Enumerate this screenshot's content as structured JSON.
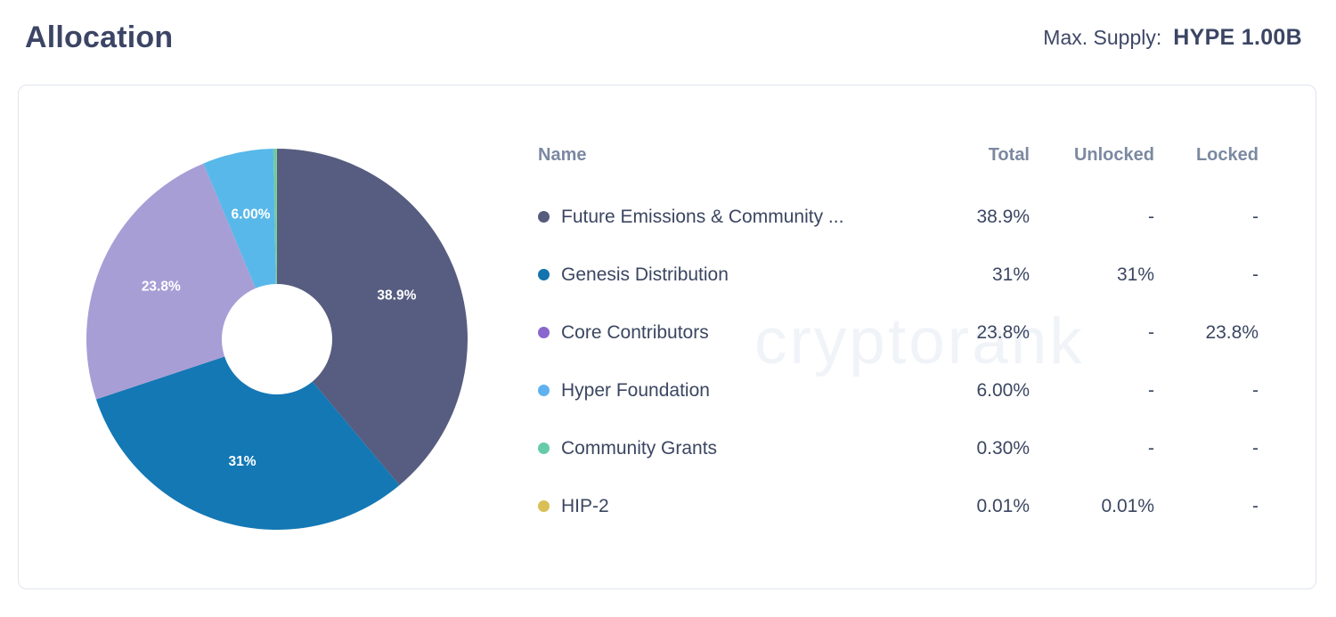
{
  "page": {
    "title": "Allocation",
    "max_supply_label": "Max. Supply:",
    "max_supply_value": "HYPE 1.00B"
  },
  "watermark": "cryptorank",
  "table": {
    "headers": {
      "name": "Name",
      "total": "Total",
      "unlocked": "Unlocked",
      "locked": "Locked"
    },
    "rows": [
      {
        "name": "Future Emissions & Community ...",
        "total": "38.9%",
        "unlocked": "-",
        "locked": "-",
        "dot_color": "#555c7e"
      },
      {
        "name": "Genesis Distribution",
        "total": "31%",
        "unlocked": "31%",
        "locked": "-",
        "dot_color": "#1273ae"
      },
      {
        "name": "Core Contributors",
        "total": "23.8%",
        "unlocked": "-",
        "locked": "23.8%",
        "dot_color": "#8a67cd"
      },
      {
        "name": "Hyper Foundation",
        "total": "6.00%",
        "unlocked": "-",
        "locked": "-",
        "dot_color": "#60b1ef"
      },
      {
        "name": "Community Grants",
        "total": "0.30%",
        "unlocked": "-",
        "locked": "-",
        "dot_color": "#66cbaa"
      },
      {
        "name": "HIP-2",
        "total": "0.01%",
        "unlocked": "0.01%",
        "locked": "-",
        "dot_color": "#d9bf55"
      }
    ]
  },
  "chart_data": {
    "type": "pie",
    "donut": true,
    "title": "Allocation",
    "categories": [
      "Future Emissions & Community ...",
      "Genesis Distribution",
      "Core Contributors",
      "Hyper Foundation",
      "Community Grants",
      "HIP-2"
    ],
    "values": [
      38.9,
      31,
      23.8,
      6.0,
      0.3,
      0.01
    ],
    "slice_labels": [
      "38.9%",
      "31%",
      "23.8%",
      "6.00%",
      "",
      ""
    ],
    "colors": [
      "#565d80",
      "#1478b4",
      "#a89ed6",
      "#58b8e9",
      "#6fcb9f",
      "#d9bf55"
    ],
    "start_angle_deg": 0,
    "direction": "clockwise",
    "inner_radius_ratio": 0.29,
    "legend_position": "right-table",
    "unit": "%"
  }
}
